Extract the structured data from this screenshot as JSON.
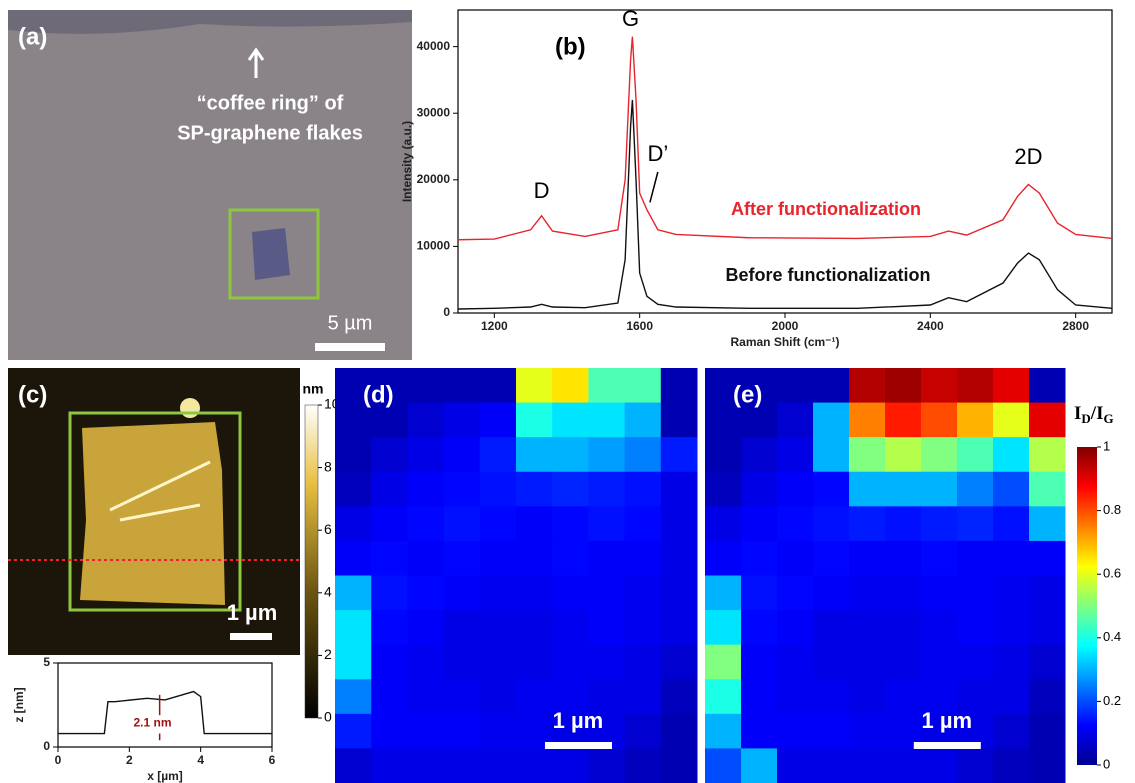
{
  "chart_data": [
    {
      "type": "image",
      "label": "(a)",
      "annotation": [
        "“coffee ring” of",
        "SP-graphene flakes"
      ],
      "scale_label": "5 µm"
    },
    {
      "type": "line",
      "label": "(b)",
      "xlabel": "Raman Shift (cm⁻¹)",
      "ylabel": "Intensity (a.u.)",
      "annotations": [
        "G",
        "D",
        "D’",
        "2D"
      ],
      "x": [
        1100,
        1200,
        1300,
        1330,
        1360,
        1450,
        1540,
        1560,
        1575,
        1580,
        1590,
        1600,
        1620,
        1650,
        1700,
        1900,
        2200,
        2400,
        2450,
        2500,
        2600,
        2640,
        2670,
        2700,
        2750,
        2800,
        2900
      ],
      "series": [
        {
          "name": "After functionalization",
          "color": "#e8242c",
          "values": [
            11000,
            11100,
            12500,
            14600,
            12300,
            11500,
            12500,
            20000,
            38000,
            41500,
            32000,
            18000,
            15500,
            12500,
            11800,
            11300,
            11200,
            11500,
            12300,
            11700,
            14000,
            17500,
            19300,
            18000,
            13500,
            11800,
            11200
          ]
        },
        {
          "name": "Before functionalization",
          "color": "#111111",
          "values": [
            600,
            700,
            900,
            1300,
            900,
            800,
            1500,
            8000,
            28000,
            32000,
            20000,
            6000,
            2500,
            1300,
            900,
            700,
            700,
            1200,
            2300,
            1700,
            4500,
            7500,
            9000,
            8000,
            3500,
            1200,
            700
          ]
        }
      ],
      "xlim": [
        1100,
        2900
      ],
      "xticks": [
        1200,
        1600,
        2000,
        2400,
        2800
      ],
      "ylim": [
        0,
        45500
      ],
      "yticks": [
        0,
        10000,
        20000,
        30000,
        40000
      ]
    },
    {
      "type": "image",
      "label": "(c)",
      "scale_label": "1 µm",
      "colorbar": {
        "label": "nm",
        "lim": [
          0,
          10
        ],
        "ticks": [
          0,
          2,
          4,
          6,
          8,
          10
        ]
      }
    },
    {
      "type": "line",
      "xlabel": "x [µm]",
      "ylabel": "z [nm]",
      "annotation": "2.1 nm",
      "x": [
        0,
        1.3,
        1.4,
        1.6,
        2.5,
        3.0,
        3.8,
        4.0,
        4.1,
        4.3,
        6
      ],
      "values": [
        0.8,
        0.8,
        2.7,
        2.7,
        2.9,
        2.8,
        3.3,
        3.0,
        0.8,
        0.8,
        0.8
      ],
      "color": "#111111",
      "xlim": [
        0,
        6
      ],
      "xticks": [
        0,
        2,
        4,
        6
      ],
      "ylim": [
        0,
        5
      ],
      "yticks": [
        0,
        5
      ]
    },
    {
      "type": "heatmap",
      "label": "(d)",
      "scale_label": "1 µm",
      "values": [
        [
          0.05,
          0.05,
          0.05,
          0.05,
          0.05,
          0.6,
          0.65,
          0.45,
          0.45,
          0.05
        ],
        [
          0.05,
          0.05,
          0.08,
          0.1,
          0.12,
          0.4,
          0.35,
          0.35,
          0.3,
          0.05
        ],
        [
          0.05,
          0.08,
          0.1,
          0.12,
          0.15,
          0.3,
          0.3,
          0.28,
          0.25,
          0.15
        ],
        [
          0.06,
          0.1,
          0.12,
          0.13,
          0.14,
          0.15,
          0.16,
          0.15,
          0.14,
          0.1
        ],
        [
          0.1,
          0.12,
          0.13,
          0.14,
          0.13,
          0.12,
          0.13,
          0.14,
          0.13,
          0.1
        ],
        [
          0.12,
          0.13,
          0.12,
          0.13,
          0.12,
          0.12,
          0.13,
          0.12,
          0.12,
          0.1
        ],
        [
          0.3,
          0.14,
          0.13,
          0.12,
          0.11,
          0.11,
          0.12,
          0.12,
          0.11,
          0.1
        ],
        [
          0.35,
          0.13,
          0.12,
          0.1,
          0.1,
          0.1,
          0.11,
          0.12,
          0.11,
          0.1
        ],
        [
          0.35,
          0.12,
          0.11,
          0.1,
          0.1,
          0.1,
          0.11,
          0.11,
          0.1,
          0.08
        ],
        [
          0.25,
          0.12,
          0.11,
          0.11,
          0.1,
          0.11,
          0.11,
          0.1,
          0.1,
          0.06
        ],
        [
          0.15,
          0.12,
          0.12,
          0.12,
          0.11,
          0.11,
          0.1,
          0.1,
          0.08,
          0.05
        ],
        [
          0.08,
          0.1,
          0.1,
          0.1,
          0.1,
          0.1,
          0.1,
          0.08,
          0.06,
          0.05
        ]
      ]
    },
    {
      "type": "heatmap",
      "label": "(e)",
      "scale_label": "1 µm",
      "values": [
        [
          0.05,
          0.05,
          0.05,
          0.05,
          0.95,
          0.97,
          0.93,
          0.95,
          0.9,
          0.05
        ],
        [
          0.05,
          0.05,
          0.08,
          0.3,
          0.75,
          0.85,
          0.8,
          0.7,
          0.6,
          0.9
        ],
        [
          0.05,
          0.08,
          0.1,
          0.3,
          0.5,
          0.55,
          0.5,
          0.45,
          0.35,
          0.55
        ],
        [
          0.06,
          0.1,
          0.12,
          0.13,
          0.3,
          0.3,
          0.3,
          0.25,
          0.2,
          0.45
        ],
        [
          0.1,
          0.12,
          0.13,
          0.14,
          0.15,
          0.14,
          0.15,
          0.16,
          0.14,
          0.3
        ],
        [
          0.12,
          0.13,
          0.12,
          0.13,
          0.12,
          0.12,
          0.13,
          0.12,
          0.12,
          0.12
        ],
        [
          0.3,
          0.14,
          0.13,
          0.12,
          0.11,
          0.11,
          0.12,
          0.12,
          0.11,
          0.1
        ],
        [
          0.35,
          0.13,
          0.12,
          0.1,
          0.1,
          0.1,
          0.11,
          0.12,
          0.11,
          0.1
        ],
        [
          0.5,
          0.12,
          0.11,
          0.1,
          0.1,
          0.1,
          0.11,
          0.11,
          0.1,
          0.08
        ],
        [
          0.4,
          0.12,
          0.11,
          0.11,
          0.1,
          0.11,
          0.11,
          0.1,
          0.1,
          0.06
        ],
        [
          0.3,
          0.12,
          0.12,
          0.12,
          0.11,
          0.11,
          0.1,
          0.1,
          0.08,
          0.05
        ],
        [
          0.2,
          0.3,
          0.1,
          0.1,
          0.1,
          0.1,
          0.1,
          0.08,
          0.06,
          0.05
        ]
      ],
      "colorbar": {
        "label_parts": [
          "I",
          "D",
          "/I",
          "G"
        ],
        "lim": [
          0,
          1
        ],
        "ticks": [
          0,
          0.2,
          0.4,
          0.6,
          0.8,
          1
        ]
      }
    }
  ]
}
